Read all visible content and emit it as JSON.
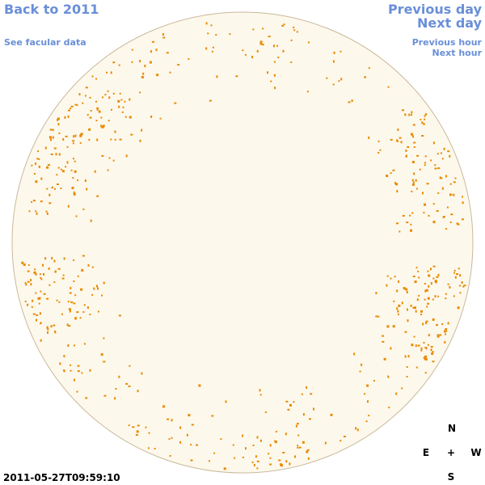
{
  "nav": {
    "back": "Back to 2011",
    "facular": "See facular data",
    "previous_day": "Previous day",
    "next_day": "Next day",
    "previous_hour": "Previous hour",
    "next_hour": "Next hour"
  },
  "timestamp": "2011-05-27T09:59:10",
  "compass": {
    "north": "N",
    "east": "E",
    "center": "+",
    "west": "W",
    "south": "S"
  }
}
